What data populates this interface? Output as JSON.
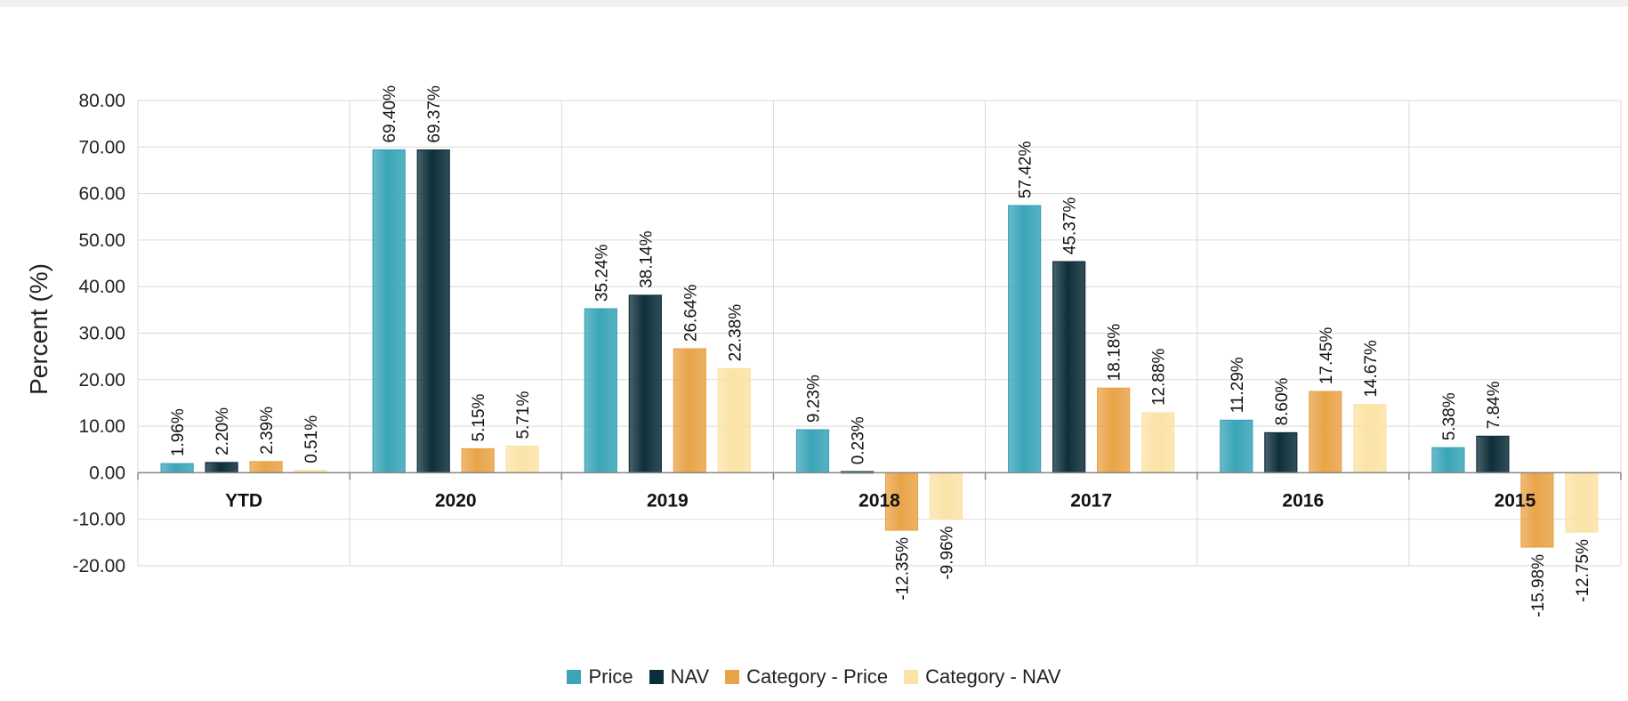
{
  "chart_data": {
    "type": "bar",
    "title": "",
    "xlabel": "",
    "ylabel": "Percent (%)",
    "ylim": [
      -20,
      80
    ],
    "yticks": [
      "80.00",
      "70.00",
      "60.00",
      "50.00",
      "40.00",
      "30.00",
      "20.00",
      "10.00",
      "0.00",
      "-10.00",
      "-20.00"
    ],
    "ytick_values": [
      80,
      70,
      60,
      50,
      40,
      30,
      20,
      10,
      0,
      -10,
      -20
    ],
    "categories": [
      "YTD",
      "2020",
      "2019",
      "2018",
      "2017",
      "2016",
      "2015"
    ],
    "series": [
      {
        "name": "Price",
        "color": "#3aa5b8",
        "values": [
          1.96,
          69.4,
          35.24,
          9.23,
          57.42,
          11.29,
          5.38
        ],
        "labels": [
          "1.96%",
          "69.40%",
          "35.24%",
          "9.23%",
          "57.42%",
          "11.29%",
          "5.38%"
        ]
      },
      {
        "name": "NAV",
        "color": "#0d2f3a",
        "values": [
          2.2,
          69.37,
          38.14,
          0.23,
          45.37,
          8.6,
          7.84
        ],
        "labels": [
          "2.20%",
          "69.37%",
          "38.14%",
          "0.23%",
          "45.37%",
          "8.60%",
          "7.84%"
        ]
      },
      {
        "name": "Category - Price",
        "color": "#e9a448",
        "values": [
          2.39,
          5.15,
          26.64,
          -12.35,
          18.18,
          17.45,
          -15.98
        ],
        "labels": [
          "2.39%",
          "5.15%",
          "26.64%",
          "-12.35%",
          "18.18%",
          "17.45%",
          "-15.98%"
        ]
      },
      {
        "name": "Category - NAV",
        "color": "#fbe3a6",
        "values": [
          0.51,
          5.71,
          22.38,
          -9.96,
          12.88,
          14.67,
          -12.75
        ],
        "labels": [
          "0.51%",
          "5.71%",
          "22.38%",
          "-9.96%",
          "12.88%",
          "14.67%",
          "-12.75%"
        ]
      }
    ],
    "grid": true,
    "legend": "bottom-center"
  }
}
